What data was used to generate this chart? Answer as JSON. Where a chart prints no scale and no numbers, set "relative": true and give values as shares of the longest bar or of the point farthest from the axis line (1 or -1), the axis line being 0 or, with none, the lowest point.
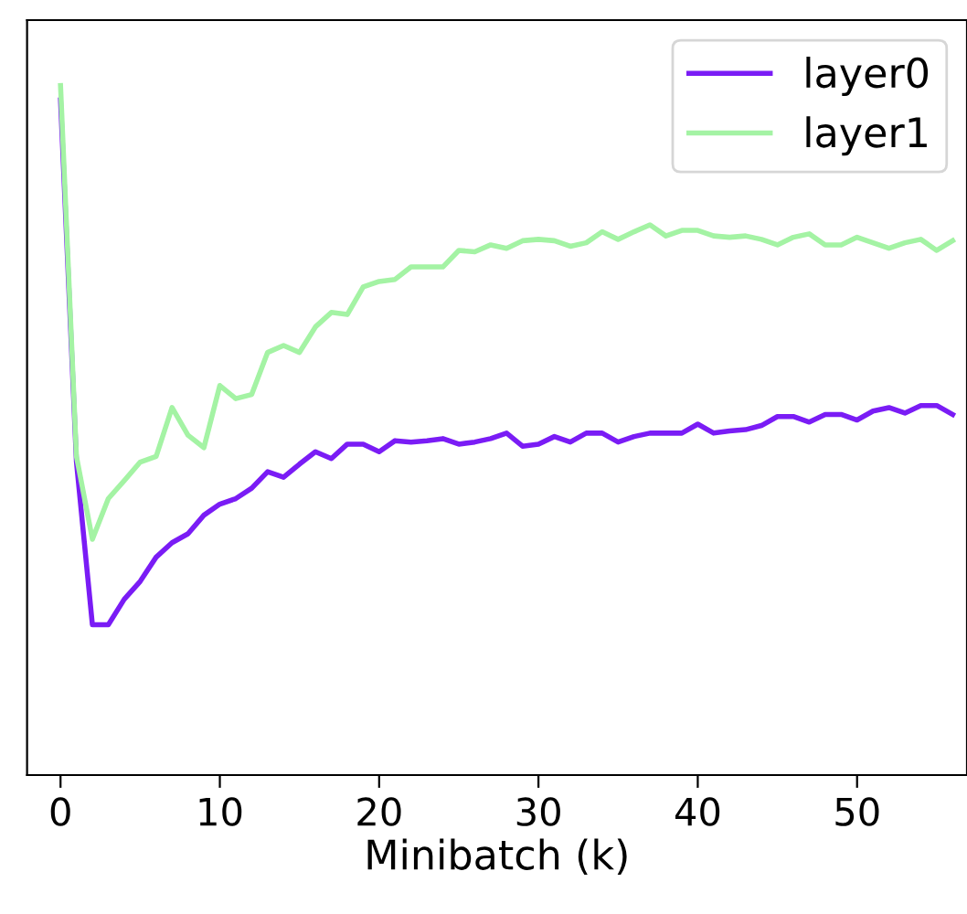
{
  "chart_data": {
    "type": "line",
    "xlabel": "Minibatch (k)",
    "relative": true,
    "x": [
      0,
      1,
      2,
      3,
      4,
      5,
      6,
      7,
      8,
      9,
      10,
      11,
      12,
      13,
      14,
      15,
      16,
      17,
      18,
      19,
      20,
      21,
      22,
      23,
      24,
      25,
      26,
      27,
      28,
      29,
      30,
      31,
      32,
      33,
      34,
      35,
      36,
      37,
      38,
      39,
      40,
      41,
      42,
      43,
      44,
      45,
      46,
      47,
      48,
      49,
      50,
      51,
      52,
      53,
      54,
      55,
      56
    ],
    "xlim": [
      -2.1,
      56.9
    ],
    "xticks": [
      0,
      10,
      20,
      30,
      40,
      50
    ],
    "series": [
      {
        "name": "layer0",
        "color": "#7a1cf5",
        "values": [
          0.979,
          0.454,
          0.218,
          0.218,
          0.255,
          0.281,
          0.316,
          0.337,
          0.35,
          0.377,
          0.393,
          0.401,
          0.416,
          0.44,
          0.432,
          0.451,
          0.469,
          0.459,
          0.48,
          0.48,
          0.469,
          0.485,
          0.483,
          0.485,
          0.488,
          0.48,
          0.483,
          0.488,
          0.496,
          0.477,
          0.48,
          0.491,
          0.483,
          0.496,
          0.496,
          0.483,
          0.491,
          0.496,
          0.496,
          0.496,
          0.509,
          0.496,
          0.499,
          0.501,
          0.507,
          0.52,
          0.52,
          0.512,
          0.523,
          0.523,
          0.515,
          0.528,
          0.533,
          0.525,
          0.536,
          0.536,
          0.523
        ]
      },
      {
        "name": "layer1",
        "color": "#a4f3a4",
        "values": [
          1.0,
          0.462,
          0.342,
          0.401,
          0.427,
          0.454,
          0.462,
          0.533,
          0.493,
          0.475,
          0.565,
          0.546,
          0.552,
          0.613,
          0.623,
          0.613,
          0.65,
          0.671,
          0.668,
          0.708,
          0.716,
          0.719,
          0.737,
          0.737,
          0.737,
          0.761,
          0.759,
          0.769,
          0.764,
          0.775,
          0.777,
          0.775,
          0.767,
          0.772,
          0.788,
          0.777,
          0.788,
          0.798,
          0.782,
          0.79,
          0.79,
          0.782,
          0.78,
          0.782,
          0.777,
          0.769,
          0.78,
          0.785,
          0.769,
          0.769,
          0.78,
          0.772,
          0.764,
          0.772,
          0.777,
          0.761,
          0.775
        ]
      }
    ],
    "legend": "top right",
    "grid": false,
    "line_style": "solid"
  }
}
